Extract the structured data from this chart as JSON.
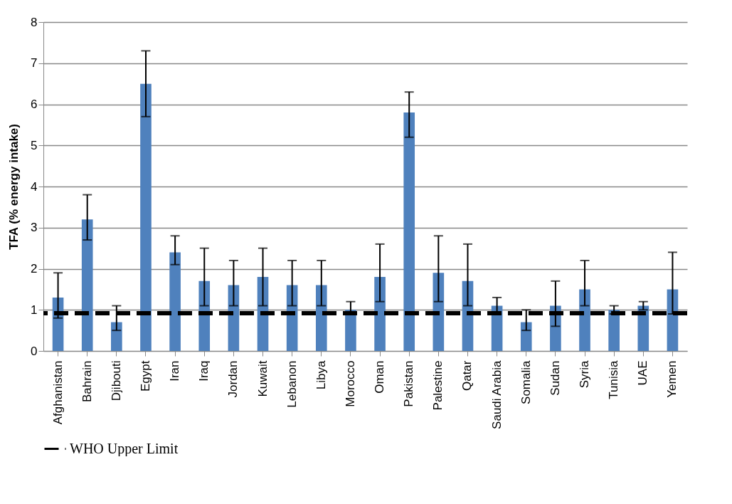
{
  "chart_data": {
    "type": "bar",
    "ylabel": "TFA (% energy intake)",
    "categories": [
      "Afghanistan",
      "Bahrain",
      "Djibouti",
      "Egypt",
      "Iran",
      "Iraq",
      "Jordan",
      "Kuwait",
      "Lebanon",
      "Libya",
      "Morocco",
      "Oman",
      "Pakistan",
      "Palestine",
      "Qatar",
      "Saudi Arabia",
      "Somalia",
      "Sudan",
      "Syria",
      "Tunisia",
      "UAE",
      "Yemen"
    ],
    "values": [
      1.3,
      3.2,
      0.7,
      6.5,
      2.4,
      1.7,
      1.6,
      1.8,
      1.6,
      1.6,
      1.0,
      1.8,
      5.8,
      1.9,
      1.7,
      1.1,
      0.7,
      1.1,
      1.5,
      1.0,
      1.1,
      1.5
    ],
    "errors": [
      [
        0.8,
        1.9
      ],
      [
        2.7,
        3.8
      ],
      [
        0.5,
        1.1
      ],
      [
        5.7,
        7.3
      ],
      [
        2.1,
        2.8
      ],
      [
        1.1,
        2.5
      ],
      [
        1.1,
        2.2
      ],
      [
        1.1,
        2.5
      ],
      [
        1.1,
        2.2
      ],
      [
        1.1,
        2.2
      ],
      [
        0.9,
        1.2
      ],
      [
        1.2,
        2.6
      ],
      [
        5.2,
        6.3
      ],
      [
        1.2,
        2.8
      ],
      [
        1.1,
        2.6
      ],
      [
        0.9,
        1.3
      ],
      [
        0.5,
        1.0
      ],
      [
        0.6,
        1.7
      ],
      [
        1.1,
        2.2
      ],
      [
        0.9,
        1.1
      ],
      [
        1.0,
        1.2
      ],
      [
        0.9,
        2.4
      ]
    ],
    "color": "#4f81bd",
    "ylim": [
      0,
      8
    ],
    "yticks": [
      0,
      1,
      2,
      3,
      4,
      5,
      6,
      7,
      8
    ],
    "grid": "y",
    "ref_lines": [
      {
        "axis": "y",
        "value": 0.92,
        "label": "WHO Upper Limit",
        "color": "#000000",
        "line_style": "dashed"
      }
    ],
    "legend": "bottom left"
  }
}
